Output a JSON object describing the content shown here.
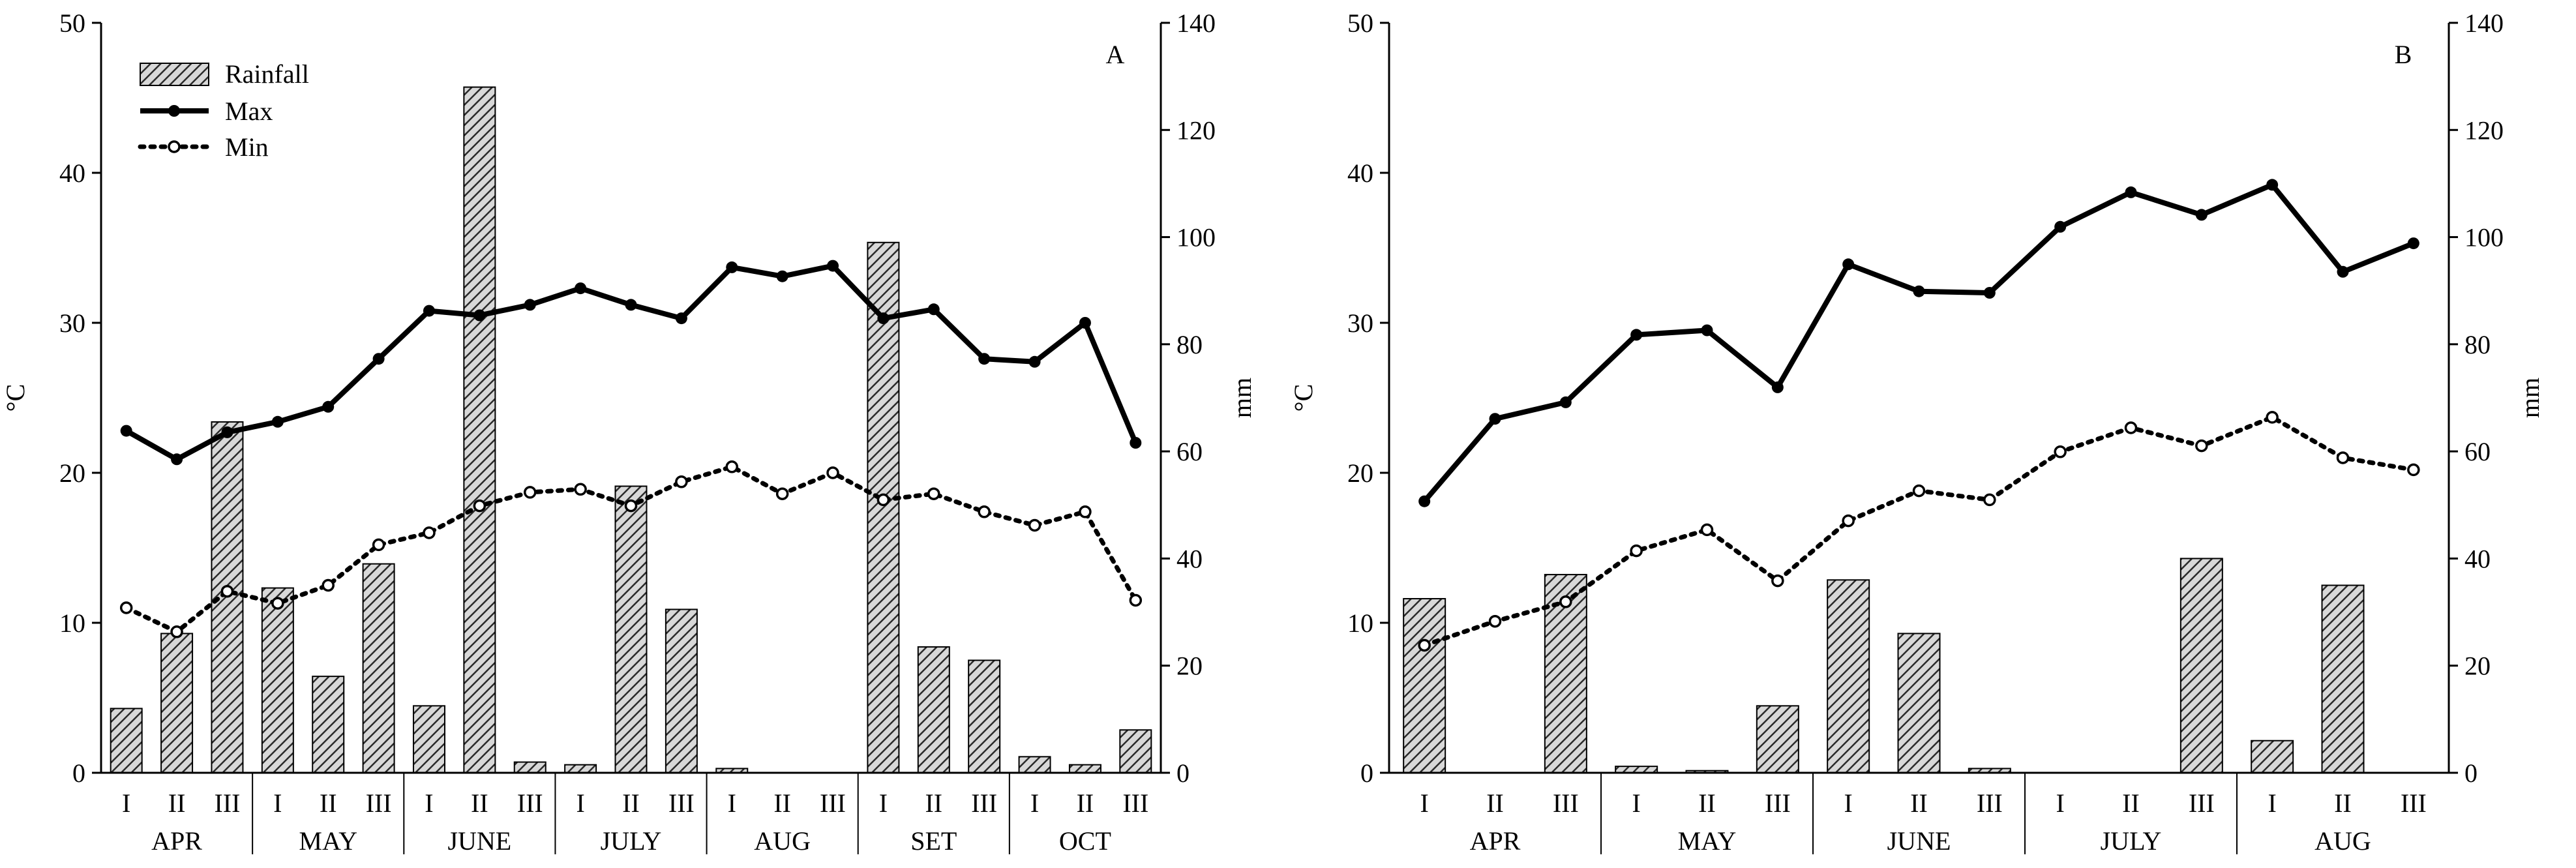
{
  "chart_data": [
    {
      "type": "bar+line",
      "panel_label": "A",
      "ylabel_left": "°C",
      "ylabel_right": "mm",
      "ylim_left": [
        0,
        50
      ],
      "ylim_right": [
        0,
        140
      ],
      "yticks_left": [
        "0",
        "10",
        "20",
        "30",
        "40",
        "50"
      ],
      "yticks_right": [
        "0",
        "20",
        "40",
        "60",
        "80",
        "100",
        "120",
        "140"
      ],
      "legend": {
        "position": "top-left",
        "entries": [
          "Rainfall",
          "Max",
          "Min"
        ]
      },
      "months": [
        "APR",
        "MAY",
        "JUNE",
        "JULY",
        "AUG",
        "SET",
        "OCT"
      ],
      "decades": [
        "I",
        "II",
        "III"
      ],
      "series": [
        {
          "name": "Rainfall",
          "kind": "bar",
          "axis": "right",
          "values": [
            12,
            26,
            65.5,
            34.5,
            18,
            39,
            12.5,
            128,
            2,
            1.5,
            53.5,
            30.5,
            0.8,
            0,
            0,
            99,
            23.5,
            21,
            3,
            1.5,
            8
          ]
        },
        {
          "name": "Max",
          "kind": "line",
          "axis": "left",
          "values": [
            22.8,
            20.9,
            22.7,
            23.4,
            24.4,
            27.6,
            30.8,
            30.5,
            31.2,
            32.3,
            31.2,
            30.3,
            33.7,
            33.1,
            33.8,
            30.3,
            30.9,
            27.6,
            27.4,
            30.0,
            22.0
          ]
        },
        {
          "name": "Min",
          "kind": "line",
          "axis": "left",
          "values": [
            11.0,
            9.4,
            12.1,
            11.3,
            12.5,
            15.2,
            16.0,
            17.8,
            18.7,
            18.9,
            17.8,
            19.4,
            20.4,
            18.6,
            20.0,
            18.2,
            18.6,
            17.4,
            16.5,
            17.4,
            11.5
          ]
        }
      ]
    },
    {
      "type": "bar+line",
      "panel_label": "B",
      "ylabel_left": "°C",
      "ylabel_right": "mm",
      "ylim_left": [
        0,
        50
      ],
      "ylim_right": [
        0,
        140
      ],
      "yticks_left": [
        "0",
        "10",
        "20",
        "30",
        "40",
        "50"
      ],
      "yticks_right": [
        "0",
        "20",
        "40",
        "60",
        "80",
        "100",
        "120",
        "140"
      ],
      "months": [
        "APR",
        "MAY",
        "JUNE",
        "JULY",
        "AUG"
      ],
      "decades": [
        "I",
        "II",
        "III"
      ],
      "series": [
        {
          "name": "Rainfall",
          "kind": "bar",
          "axis": "right",
          "values": [
            32.5,
            0,
            37,
            1.2,
            0.4,
            12.5,
            36,
            26,
            0.8,
            0,
            0,
            40,
            6,
            35,
            0
          ]
        },
        {
          "name": "Max",
          "kind": "line",
          "axis": "left",
          "values": [
            18.1,
            23.6,
            24.7,
            29.2,
            29.5,
            25.7,
            33.9,
            32.1,
            32.0,
            36.4,
            38.7,
            37.2,
            39.2,
            33.4,
            35.3
          ]
        },
        {
          "name": "Min",
          "kind": "line",
          "axis": "left",
          "values": [
            8.5,
            10.1,
            11.4,
            14.8,
            16.2,
            12.8,
            16.8,
            18.8,
            18.2,
            21.4,
            23.0,
            21.8,
            23.7,
            21.0,
            20.2
          ]
        }
      ]
    }
  ]
}
